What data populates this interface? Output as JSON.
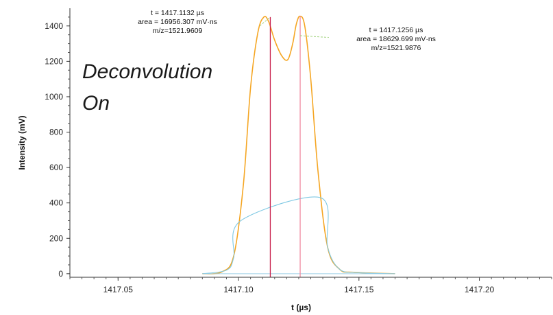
{
  "chart_data": {
    "type": "line",
    "title": "",
    "xlabel": "t (µs)",
    "ylabel": "Intensity (mV)",
    "xlim": [
      1417.03,
      1417.23
    ],
    "ylim": [
      -20,
      1500
    ],
    "xticks": [
      1417.05,
      1417.1,
      1417.15,
      1417.2
    ],
    "xtick_labels": [
      "1417.05",
      "1417.10",
      "1417.15",
      "1417.20"
    ],
    "yticks": [
      0,
      200,
      400,
      600,
      800,
      1000,
      1200,
      1400
    ],
    "ytick_labels": [
      "0",
      "200",
      "400",
      "600",
      "800",
      "1000",
      "1200",
      "1400"
    ],
    "grid": false,
    "overlay_text": [
      "Deconvolution",
      "On"
    ],
    "series": [
      {
        "style": "line",
        "color": "#f5a623",
        "x": [
          1417.085,
          1417.093,
          1417.098,
          1417.102,
          1417.105,
          1417.108,
          1417.1105,
          1417.1125,
          1417.115,
          1417.118,
          1417.1205,
          1417.1225,
          1417.124,
          1417.1255,
          1417.1275,
          1417.13,
          1417.133,
          1417.137,
          1417.142,
          1417.148,
          1417.165
        ],
        "y": [
          0,
          10,
          100,
          500,
          1050,
          1360,
          1450,
          1425,
          1320,
          1230,
          1210,
          1300,
          1410,
          1455,
          1400,
          1100,
          580,
          150,
          25,
          8,
          0
        ]
      },
      {
        "style": "line",
        "color": "#7ec8e3",
        "x": [
          1417.085,
          1417.095,
          1417.098,
          1417.101,
          1417.134,
          1417.137,
          1417.142,
          1417.15,
          1417.165
        ],
        "y": [
          0,
          20,
          90,
          300,
          430,
          150,
          25,
          6,
          0
        ]
      }
    ],
    "peak_markers": [
      {
        "x": 1417.1132,
        "y_top": 1450,
        "color": "#c81e4a"
      },
      {
        "x": 1417.1256,
        "y_top": 1455,
        "color": "#f08aa0"
      }
    ],
    "annotations": [
      {
        "lines": [
          "t = 1417.1132 µs",
          "area = 16956.307 mV·ns",
          "m/z=1521.9609"
        ],
        "leader_from": {
          "x": 1417.1088,
          "y": 1400
        },
        "leader_to": {
          "x": 1417.1132,
          "y": 1450
        },
        "leader_color": "#9fd17a"
      },
      {
        "lines": [
          "t = 1417.1256 µs",
          "area = 18629.699 mV·ns",
          "m/z=1521.9876"
        ],
        "leader_from": {
          "x": 1417.1256,
          "y": 1345
        },
        "leader_to": {
          "x": 1417.1375,
          "y": 1335
        },
        "leader_color": "#9fd17a"
      }
    ]
  }
}
